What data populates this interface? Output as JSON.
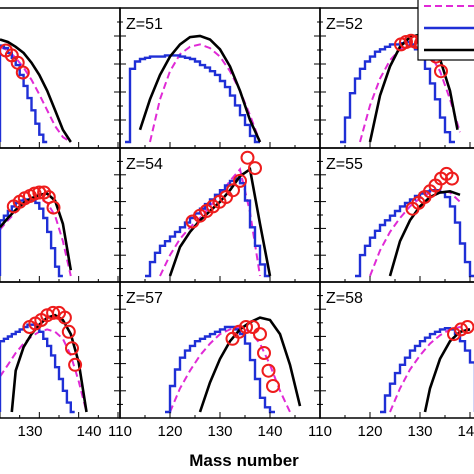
{
  "chart_data": {
    "type": "line",
    "xlabel": "Mass number",
    "colors": {
      "histogram": "#1f2fd6",
      "dashed": "#e02ad6",
      "solid": "#000000",
      "markers": "#ee1c1c"
    },
    "panels": [
      {
        "label": "",
        "xlim": [
          120,
          150
        ],
        "ylim": [
          0,
          1
        ],
        "histogram": {
          "bin_start": 120,
          "bin_width": 1,
          "values": [
            0.79,
            0.77,
            0.73,
            0.69,
            0.63,
            0.55,
            0.46,
            0.36,
            0.26,
            0.15,
            0.06,
            0.0
          ]
        },
        "dashed": {
          "x": [
            120,
            122,
            124,
            126,
            128,
            130,
            132,
            134,
            136,
            138
          ],
          "y": [
            0.78,
            0.75,
            0.69,
            0.61,
            0.51,
            0.39,
            0.26,
            0.13,
            0.04,
            0.0
          ]
        },
        "solid": {
          "x": [
            120,
            122,
            124,
            126,
            128,
            130,
            132,
            134,
            136,
            138
          ],
          "y": [
            0.84,
            0.82,
            0.78,
            0.73,
            0.65,
            0.55,
            0.42,
            0.26,
            0.1,
            0.0
          ]
        },
        "markers": {
          "x": [
            121.5,
            123,
            124.5,
            125.8
          ],
          "y": [
            0.75,
            0.71,
            0.65,
            0.57
          ]
        }
      },
      {
        "label": "Z=51",
        "xlim": [
          110,
          150
        ],
        "ylim": [
          0,
          1
        ],
        "histogram": {
          "bin_start": 111,
          "bin_width": 1,
          "values": [
            0.0,
            0.6,
            0.66,
            0.68,
            0.69,
            0.7,
            0.7,
            0.7,
            0.71,
            0.71,
            0.71,
            0.7,
            0.69,
            0.68,
            0.66,
            0.63,
            0.61,
            0.58,
            0.55,
            0.5,
            0.45,
            0.38,
            0.3,
            0.22,
            0.14,
            0.05,
            0.0
          ]
        },
        "dashed": {
          "x": [
            116,
            118,
            120,
            122,
            124,
            126,
            128,
            130,
            132,
            134,
            136,
            138
          ],
          "y": [
            0.0,
            0.35,
            0.58,
            0.72,
            0.78,
            0.8,
            0.77,
            0.7,
            0.58,
            0.42,
            0.22,
            0.0
          ]
        },
        "solid": {
          "x": [
            114,
            116,
            118,
            120,
            122,
            124,
            126,
            128,
            130,
            132,
            134,
            136,
            138
          ],
          "y": [
            0.1,
            0.35,
            0.55,
            0.7,
            0.8,
            0.86,
            0.87,
            0.84,
            0.76,
            0.62,
            0.42,
            0.18,
            0.0
          ]
        },
        "markers": {
          "x": [],
          "y": []
        }
      },
      {
        "label": "Z=52",
        "xlim": [
          110,
          150
        ],
        "ylim": [
          0,
          1
        ],
        "histogram": {
          "bin_start": 114,
          "bin_width": 1,
          "values": [
            0.0,
            0.2,
            0.4,
            0.52,
            0.6,
            0.66,
            0.7,
            0.74,
            0.76,
            0.78,
            0.8,
            0.8,
            0.81,
            0.82,
            0.8,
            0.76,
            0.7,
            0.6,
            0.48,
            0.35,
            0.2,
            0.08,
            0.0
          ]
        },
        "dashed": {
          "x": [
            118,
            120,
            122,
            124,
            126,
            128,
            130,
            132,
            134,
            136,
            138
          ],
          "y": [
            0.0,
            0.3,
            0.52,
            0.67,
            0.76,
            0.8,
            0.79,
            0.72,
            0.58,
            0.35,
            0.08
          ]
        },
        "solid": {
          "x": [
            120,
            122,
            124,
            126,
            128,
            130,
            132,
            134,
            136,
            137.5
          ],
          "y": [
            0.0,
            0.38,
            0.62,
            0.78,
            0.86,
            0.88,
            0.82,
            0.68,
            0.42,
            0.1
          ]
        },
        "markers": {
          "x": [
            126.2,
            127.2,
            128.2,
            129.2,
            130.2,
            131.2,
            132.2,
            133.2,
            134.2
          ],
          "y": [
            0.8,
            0.82,
            0.83,
            0.82,
            0.81,
            0.8,
            0.76,
            0.7,
            0.58
          ]
        }
      },
      {
        "label": "",
        "xlim": [
          120,
          150
        ],
        "ylim": [
          0,
          1
        ],
        "histogram": {
          "bin_start": 120,
          "bin_width": 1,
          "values": [
            0.48,
            0.52,
            0.56,
            0.6,
            0.63,
            0.65,
            0.66,
            0.66,
            0.65,
            0.63,
            0.58,
            0.5,
            0.38,
            0.24,
            0.08,
            0.0
          ]
        },
        "dashed": {
          "x": [
            120,
            122,
            124,
            126,
            128,
            130,
            132,
            134,
            136,
            138
          ],
          "y": [
            0.4,
            0.48,
            0.55,
            0.61,
            0.65,
            0.67,
            0.63,
            0.52,
            0.3,
            0.0
          ]
        },
        "solid": {
          "x": [
            120,
            122,
            124,
            126,
            128,
            130,
            132,
            134,
            136,
            138
          ],
          "y": [
            0.42,
            0.5,
            0.57,
            0.63,
            0.67,
            0.7,
            0.71,
            0.65,
            0.45,
            0.05
          ]
        },
        "markers": {
          "x": [
            123.5,
            125,
            126.3,
            127.6,
            128.8,
            130,
            131.2,
            132.4,
            133.6
          ],
          "y": [
            0.6,
            0.64,
            0.67,
            0.69,
            0.71,
            0.72,
            0.72,
            0.68,
            0.59
          ]
        }
      },
      {
        "label": "Z=54",
        "xlim": [
          110,
          150
        ],
        "ylim": [
          0,
          1
        ],
        "histogram": {
          "bin_start": 115,
          "bin_width": 1,
          "values": [
            0.0,
            0.12,
            0.2,
            0.26,
            0.3,
            0.34,
            0.38,
            0.42,
            0.46,
            0.5,
            0.54,
            0.58,
            0.62,
            0.66,
            0.7,
            0.74,
            0.78,
            0.82,
            0.84,
            0.8,
            0.65,
            0.42,
            0.26,
            0.1,
            0.0
          ]
        },
        "dashed": {
          "x": [
            118,
            120,
            122,
            124,
            126,
            128,
            130,
            132,
            134,
            136,
            138
          ],
          "y": [
            0.0,
            0.18,
            0.32,
            0.42,
            0.5,
            0.6,
            0.7,
            0.82,
            0.92,
            0.55,
            0.0
          ]
        },
        "solid": {
          "x": [
            120,
            122,
            124,
            126,
            128,
            130,
            132,
            134,
            136,
            138,
            140
          ],
          "y": [
            0.0,
            0.25,
            0.38,
            0.48,
            0.56,
            0.64,
            0.74,
            0.86,
            0.92,
            0.45,
            0.0
          ]
        },
        "markers": {
          "x": [
            124.5,
            126,
            127.3,
            128.6,
            129.9,
            131.2,
            132.6,
            134,
            135.5,
            137
          ],
          "y": [
            0.47,
            0.52,
            0.56,
            0.6,
            0.64,
            0.68,
            0.74,
            0.82,
            1.02,
            0.93
          ]
        }
      },
      {
        "label": "Z=55",
        "xlim": [
          110,
          150
        ],
        "ylim": [
          0,
          1
        ],
        "histogram": {
          "bin_start": 117,
          "bin_width": 1,
          "values": [
            0.0,
            0.18,
            0.26,
            0.33,
            0.39,
            0.44,
            0.48,
            0.52,
            0.56,
            0.6,
            0.63,
            0.66,
            0.69,
            0.71,
            0.73,
            0.74,
            0.74,
            0.72,
            0.68,
            0.6,
            0.46,
            0.28,
            0.12,
            0.0
          ]
        },
        "dashed": {
          "x": [
            120,
            122,
            124,
            126,
            128,
            130,
            132,
            134,
            136,
            138
          ],
          "y": [
            0.0,
            0.22,
            0.38,
            0.5,
            0.6,
            0.67,
            0.72,
            0.74,
            0.72,
            0.64
          ]
        },
        "solid": {
          "x": [
            124,
            126,
            128,
            130,
            132,
            134,
            136,
            138
          ],
          "y": [
            0.0,
            0.3,
            0.48,
            0.6,
            0.68,
            0.72,
            0.73,
            0.7
          ]
        },
        "markers": {
          "x": [
            128.5,
            129.7,
            130.9,
            132,
            133.1,
            134.2,
            135.3,
            136.4
          ],
          "y": [
            0.58,
            0.63,
            0.68,
            0.73,
            0.78,
            0.84,
            0.88,
            0.84
          ]
        }
      },
      {
        "label": "",
        "xlim": [
          120,
          150
        ],
        "ylim": [
          0,
          1
        ],
        "histogram": {
          "bin_start": 120,
          "bin_width": 1,
          "values": [
            0.6,
            0.62,
            0.64,
            0.66,
            0.68,
            0.7,
            0.72,
            0.74,
            0.74,
            0.72,
            0.68,
            0.62,
            0.56,
            0.48,
            0.38,
            0.28,
            0.18,
            0.08,
            0.0
          ]
        },
        "dashed": {
          "x": [
            120,
            122,
            124,
            126,
            128,
            130,
            132,
            134,
            136,
            138,
            140,
            142
          ],
          "y": [
            0.3,
            0.4,
            0.5,
            0.58,
            0.64,
            0.68,
            0.7,
            0.68,
            0.62,
            0.48,
            0.26,
            0.0
          ]
        },
        "solid": {
          "x": [
            123,
            124,
            126,
            128,
            130,
            132,
            134,
            136,
            138,
            140,
            142
          ],
          "y": [
            0.0,
            0.35,
            0.55,
            0.66,
            0.74,
            0.8,
            0.82,
            0.78,
            0.66,
            0.42,
            0.0
          ]
        },
        "markers": {
          "x": [
            127.5,
            129,
            130.5,
            132,
            133.5,
            135,
            136.5,
            137.5,
            138.3,
            139.1
          ],
          "y": [
            0.72,
            0.75,
            0.78,
            0.82,
            0.84,
            0.84,
            0.8,
            0.68,
            0.54,
            0.4
          ]
        }
      },
      {
        "label": "Z=57",
        "xlim": [
          110,
          150
        ],
        "ylim": [
          0,
          1
        ],
        "histogram": {
          "bin_start": 119,
          "bin_width": 1,
          "values": [
            0.0,
            0.22,
            0.36,
            0.46,
            0.52,
            0.56,
            0.6,
            0.62,
            0.64,
            0.66,
            0.68,
            0.7,
            0.72,
            0.72,
            0.7,
            0.66,
            0.58,
            0.44,
            0.28,
            0.12,
            0.04,
            0.0
          ]
        },
        "dashed": {
          "x": [
            120,
            122,
            124,
            126,
            128,
            130,
            132,
            134,
            136,
            138,
            140,
            142,
            144
          ],
          "y": [
            0.0,
            0.2,
            0.35,
            0.48,
            0.58,
            0.66,
            0.7,
            0.72,
            0.68,
            0.58,
            0.4,
            0.18,
            0.0
          ]
        },
        "solid": {
          "x": [
            126,
            128,
            130,
            132,
            134,
            136,
            138,
            140,
            142,
            144,
            146
          ],
          "y": [
            0.0,
            0.25,
            0.45,
            0.6,
            0.7,
            0.76,
            0.8,
            0.78,
            0.66,
            0.4,
            0.05
          ]
        },
        "markers": {
          "x": [
            132.5,
            133.8,
            135.2,
            136.6,
            138,
            138.8,
            139.7,
            140.6
          ],
          "y": [
            0.62,
            0.68,
            0.72,
            0.72,
            0.66,
            0.5,
            0.35,
            0.22
          ]
        }
      },
      {
        "label": "Z=58",
        "xlim": [
          110,
          150
        ],
        "ylim": [
          0,
          1
        ],
        "histogram": {
          "bin_start": 122,
          "bin_width": 1,
          "values": [
            0.0,
            0.14,
            0.24,
            0.33,
            0.4,
            0.46,
            0.52,
            0.56,
            0.6,
            0.63,
            0.66,
            0.68,
            0.7,
            0.71,
            0.7,
            0.66,
            0.6,
            0.52,
            0.42
          ]
        },
        "dashed": {
          "x": [
            124,
            126,
            128,
            130,
            132,
            134,
            136,
            138,
            140
          ],
          "y": [
            0.0,
            0.2,
            0.36,
            0.48,
            0.58,
            0.65,
            0.7,
            0.72,
            0.7
          ]
        },
        "solid": {
          "x": [
            131,
            132,
            134,
            136,
            138,
            140
          ],
          "y": [
            0.0,
            0.2,
            0.45,
            0.6,
            0.68,
            0.7
          ]
        },
        "markers": {
          "x": [
            136.8,
            138.2,
            139.5
          ],
          "y": [
            0.66,
            0.7,
            0.72
          ]
        }
      }
    ],
    "x_tick_rows": [
      {
        "ticks": [
          {
            "label": "130",
            "x": 130
          },
          {
            "label": "140",
            "x": 140
          }
        ]
      },
      {
        "ticks": [
          {
            "label": "110",
            "x": 110
          },
          {
            "label": "120",
            "x": 120
          },
          {
            "label": "130",
            "x": 130
          },
          {
            "label": "140",
            "x": 140
          }
        ]
      },
      {
        "ticks": [
          {
            "label": "110",
            "x": 110
          },
          {
            "label": "120",
            "x": 120
          },
          {
            "label": "130",
            "x": 130
          },
          {
            "label": "140",
            "x": 140
          }
        ]
      }
    ]
  }
}
